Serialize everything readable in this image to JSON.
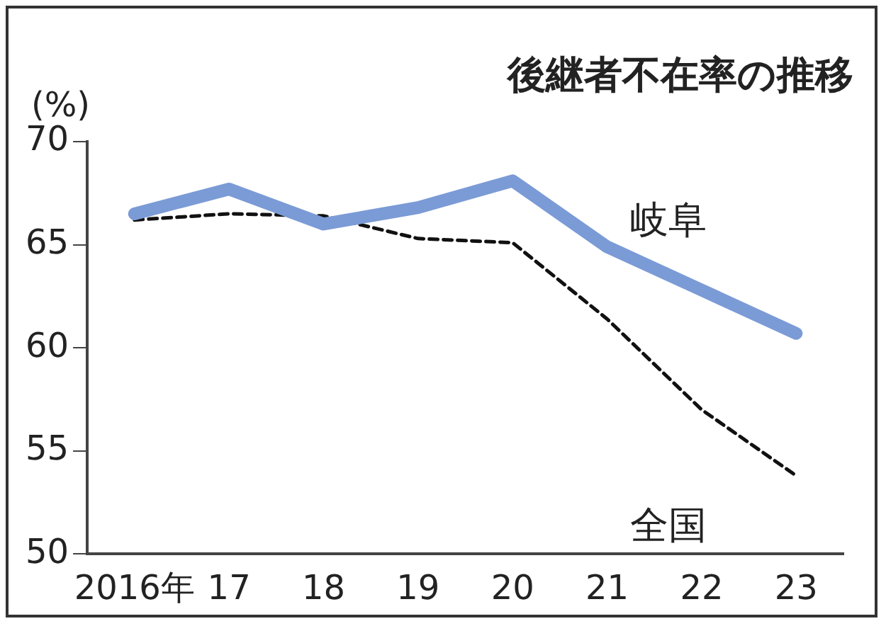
{
  "chart_data": {
    "type": "line",
    "title": "後継者不在率の推移",
    "ylabel": "(%)",
    "categories": [
      "2016年",
      "17",
      "18",
      "19",
      "20",
      "21",
      "22",
      "23"
    ],
    "series": [
      {
        "name": "岐阜",
        "color": "#7b9bd6",
        "line_style": "solid",
        "values": [
          66.5,
          67.7,
          66.0,
          66.8,
          68.1,
          64.9,
          62.8,
          60.7
        ]
      },
      {
        "name": "全国",
        "color": "#111111",
        "line_style": "dashed",
        "values": [
          66.2,
          66.5,
          66.4,
          65.3,
          65.1,
          61.4,
          57.0,
          53.8
        ]
      }
    ],
    "ylim": [
      50,
      70
    ],
    "yticks": [
      50,
      55,
      60,
      65,
      70
    ],
    "grid": false,
    "legend": false,
    "marker": "none"
  }
}
